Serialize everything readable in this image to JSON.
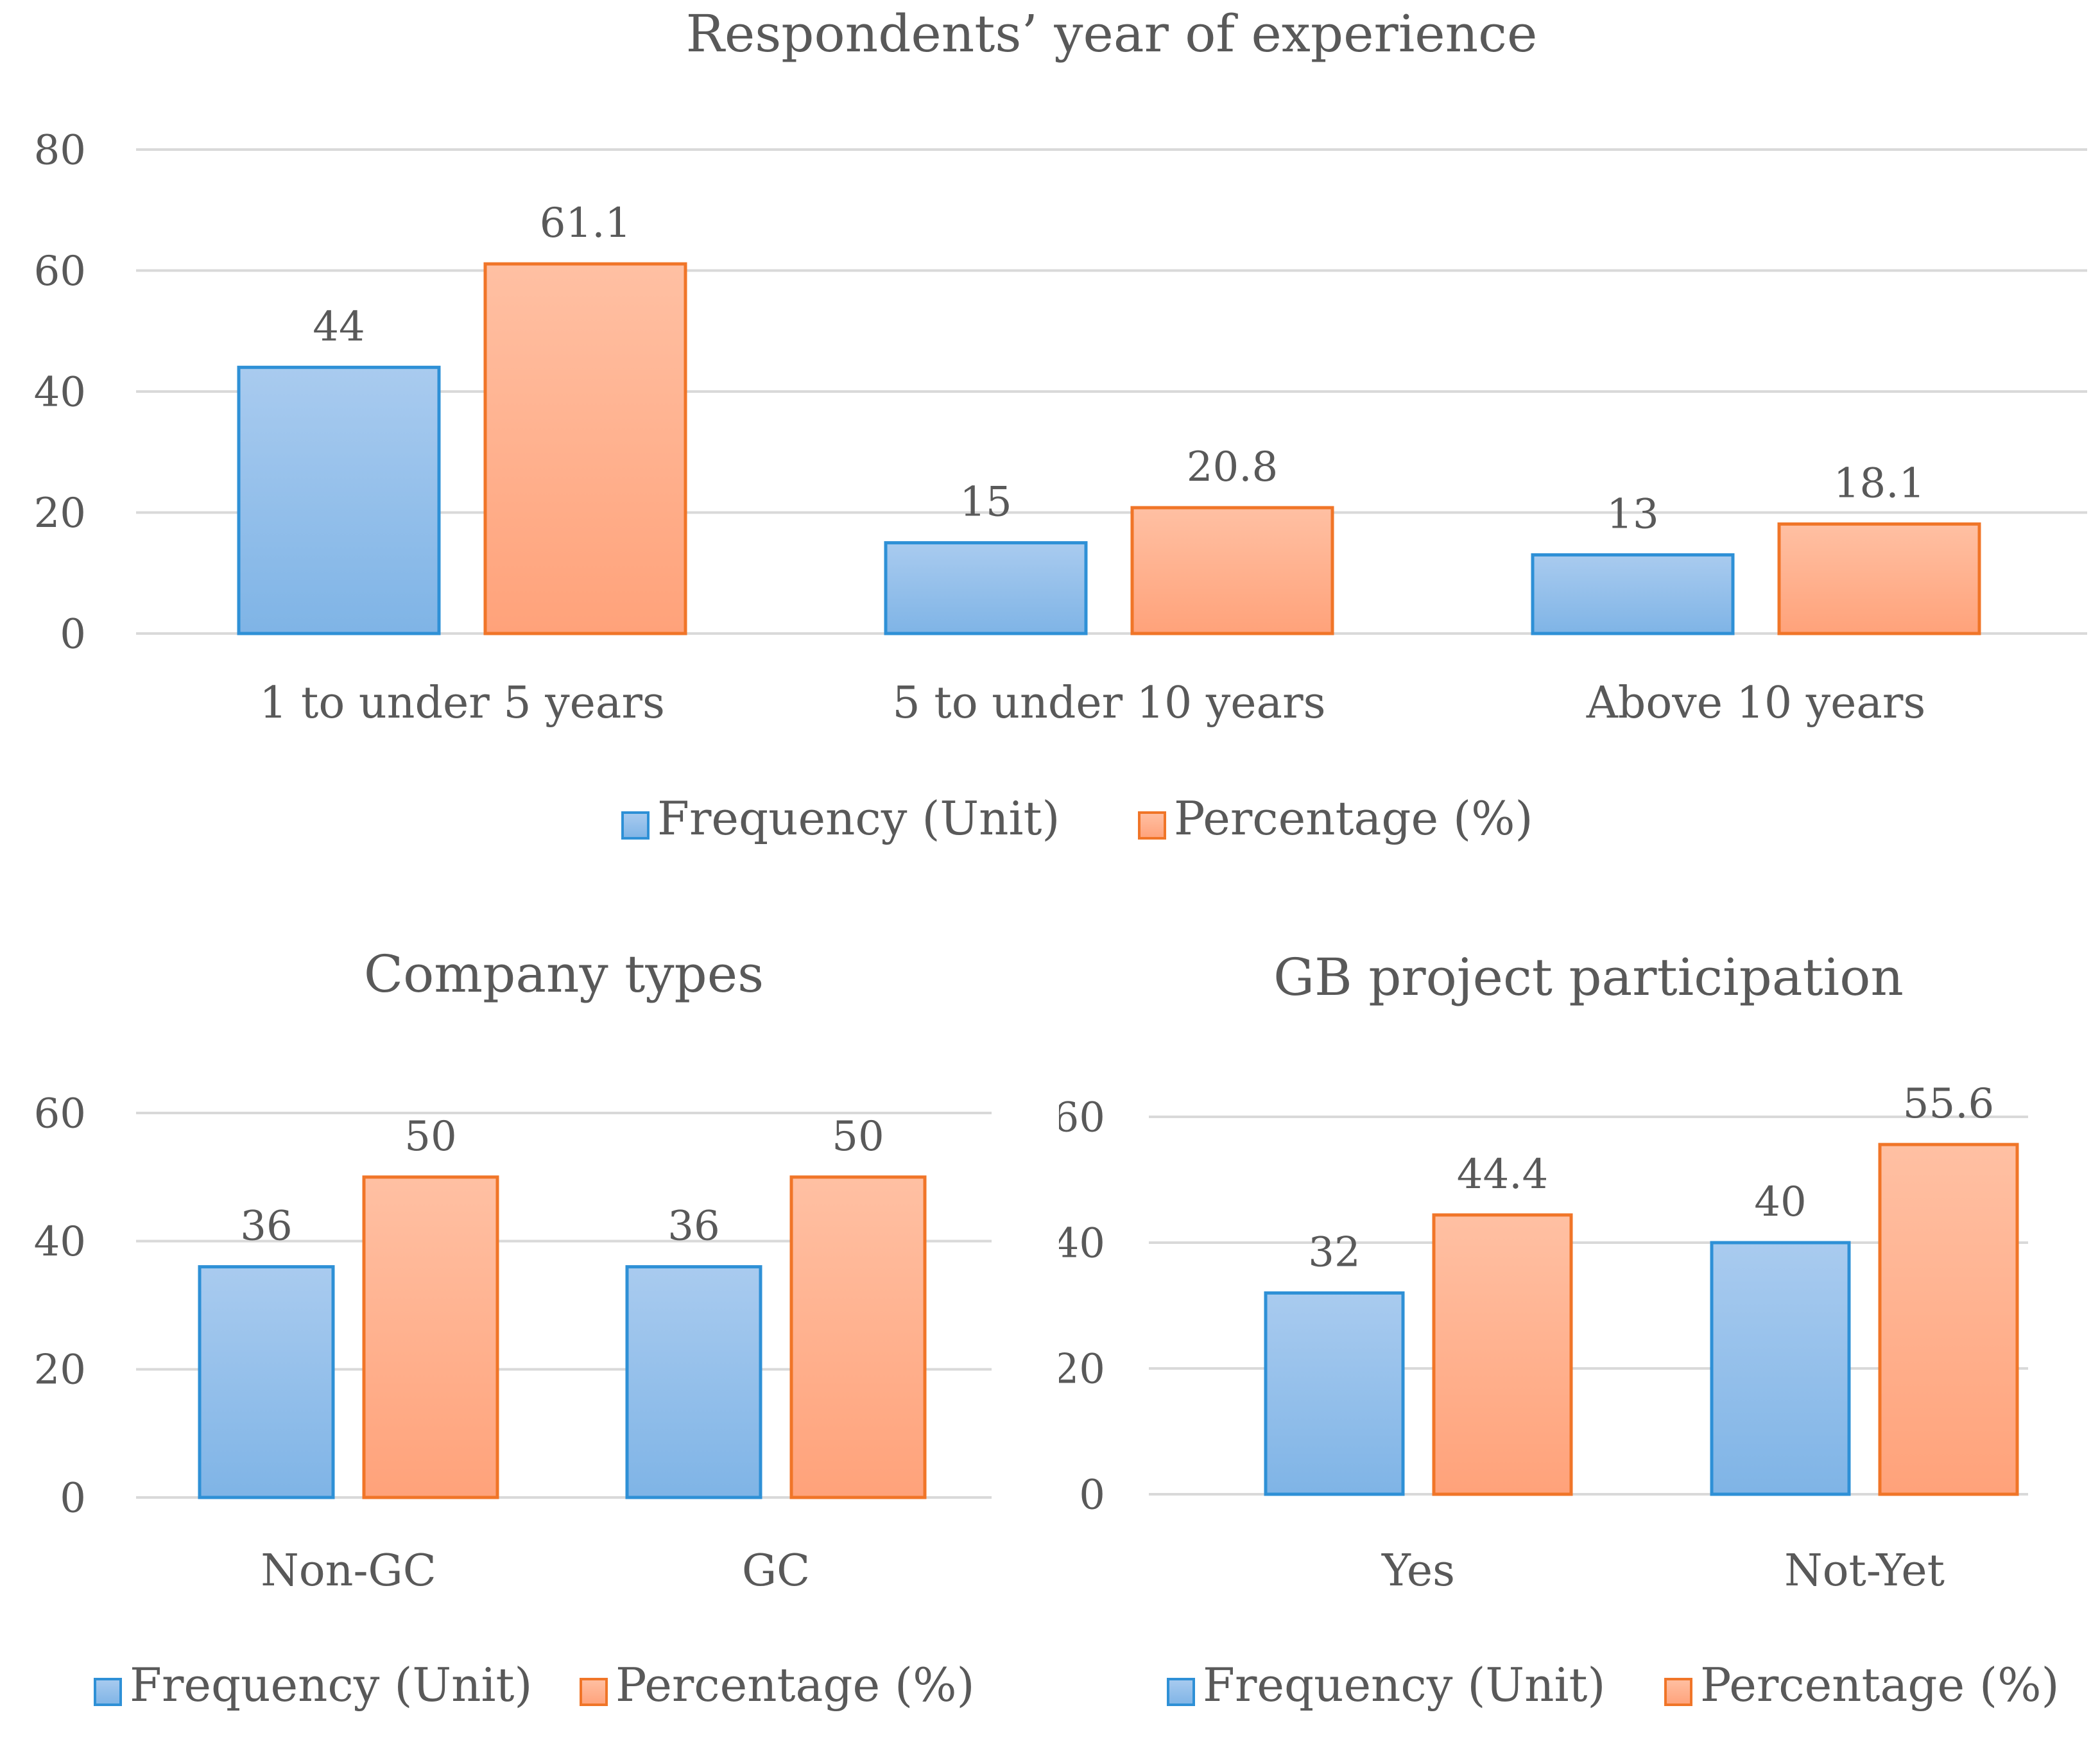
{
  "colors": {
    "frequency_fill_top": "#a9cbef",
    "frequency_fill_bottom": "#7fb4e6",
    "frequency_stroke": "#2e90d6",
    "percentage_fill_top": "#ffc0a3",
    "percentage_fill_bottom": "#ffa27a",
    "percentage_stroke": "#f07528",
    "grid": "#d9d9d9",
    "text": "#595959"
  },
  "chart_data": [
    {
      "id": "experience",
      "type": "bar",
      "title": "Respondents’ year of experience",
      "categories": [
        "1 to under 5 years",
        "5 to under 10 years",
        "Above 10 years"
      ],
      "series": [
        {
          "name": "Frequency (Unit)",
          "values": [
            44,
            15,
            13
          ],
          "labels": [
            "44",
            "15",
            "13"
          ]
        },
        {
          "name": "Percentage (%)",
          "values": [
            61.1,
            20.8,
            18.1
          ],
          "labels": [
            "61.1",
            "20.8",
            "18.1"
          ]
        }
      ],
      "ylim": [
        0,
        80
      ],
      "yticks": [
        0,
        20,
        40,
        60,
        80
      ],
      "ytick_labels": [
        "0",
        "20",
        "40",
        "60",
        "80"
      ],
      "xlabel": "",
      "ylabel": "",
      "grid": true,
      "legend": "bottom"
    },
    {
      "id": "company",
      "type": "bar",
      "title": "Company types",
      "categories": [
        "Non-GC",
        "GC"
      ],
      "series": [
        {
          "name": "Frequency (Unit)",
          "values": [
            36,
            36
          ],
          "labels": [
            "36",
            "36"
          ]
        },
        {
          "name": "Percentage (%)",
          "values": [
            50,
            50
          ],
          "labels": [
            "50",
            "50"
          ]
        }
      ],
      "ylim": [
        0,
        60
      ],
      "yticks": [
        0,
        20,
        40,
        60
      ],
      "ytick_labels": [
        "0",
        "20",
        "40",
        "60"
      ],
      "xlabel": "",
      "ylabel": "",
      "grid": true,
      "legend": "bottom"
    },
    {
      "id": "gb",
      "type": "bar",
      "title": "GB project participation",
      "categories": [
        "Yes",
        "Not-Yet"
      ],
      "series": [
        {
          "name": "Frequency (Unit)",
          "values": [
            32,
            40
          ],
          "labels": [
            "32",
            "40"
          ]
        },
        {
          "name": "Percentage (%)",
          "values": [
            44.4,
            55.6
          ],
          "labels": [
            "44.4",
            "55.6"
          ]
        }
      ],
      "ylim": [
        0,
        60
      ],
      "yticks": [
        0,
        20,
        40,
        60
      ],
      "ytick_labels": [
        "0",
        "20",
        "40",
        "60"
      ],
      "xlabel": "",
      "ylabel": "",
      "grid": true,
      "legend": "bottom"
    }
  ]
}
